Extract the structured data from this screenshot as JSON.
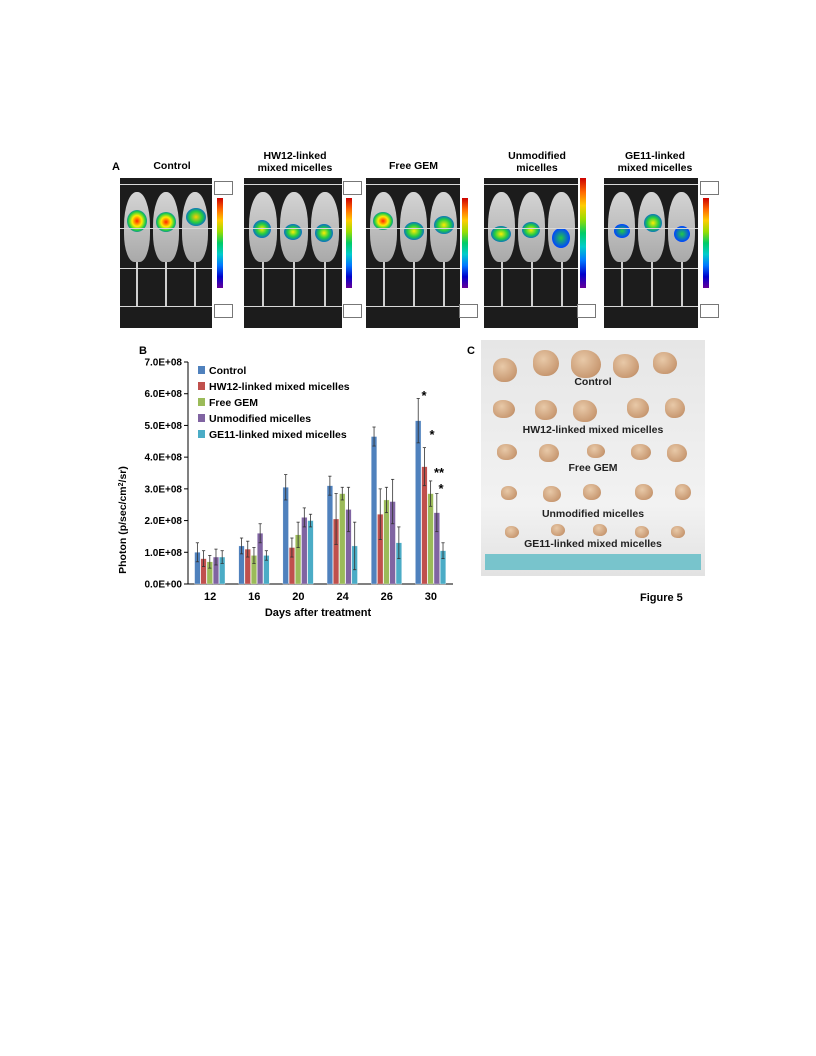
{
  "panel_a": {
    "letter": "A",
    "groups": [
      {
        "title_line1": "Control",
        "title_line2": ""
      },
      {
        "title_line1": "HW12-linked",
        "title_line2": "mixed micelles"
      },
      {
        "title_line1": "Free GEM",
        "title_line2": ""
      },
      {
        "title_line1": "Unmodified",
        "title_line2": "micelles"
      },
      {
        "title_line1": "GE11-linked",
        "title_line2": "mixed micelles"
      }
    ]
  },
  "panel_b": {
    "letter": "B",
    "legend": [
      "Control",
      "HW12-linked mixed micelles",
      "Free GEM",
      "Unmodified micelles",
      "GE11-linked mixed micelles"
    ],
    "ylabel_main": "Photon (p/sec/cm",
    "ylabel_sup": "2",
    "ylabel_tail": "/sr)",
    "xlabel": "Days after treatment",
    "ytick_labels": [
      "0.0E+00",
      "1.0E+08",
      "2.0E+08",
      "3.0E+08",
      "4.0E+08",
      "5.0E+08",
      "6.0E+08",
      "7.0E+08"
    ],
    "significance": [
      "*",
      "*",
      "**",
      "*"
    ]
  },
  "panel_c": {
    "letter": "C",
    "rows": [
      "Control",
      "HW12-linked mixed micelles",
      "Free GEM",
      "Unmodified micelles",
      "GE11-linked mixed micelles"
    ]
  },
  "figure_caption": "Figure  5",
  "chart_data": {
    "type": "bar",
    "categories": [
      "12",
      "16",
      "20",
      "24",
      "26",
      "30"
    ],
    "xlabel": "Days after treatment",
    "ylabel": "Photon (p/sec/cm2/sr)",
    "ylim": [
      0,
      700000000
    ],
    "grid": false,
    "legend_position": "top-left",
    "series": [
      {
        "name": "Control",
        "color": "#4f81bd",
        "values": [
          100000000,
          120000000,
          305000000,
          310000000,
          465000000,
          515000000
        ],
        "errors": [
          30000000,
          25000000,
          40000000,
          30000000,
          30000000,
          70000000
        ]
      },
      {
        "name": "HW12-linked mixed micelles",
        "color": "#c0504d",
        "values": [
          80000000,
          110000000,
          115000000,
          205000000,
          220000000,
          370000000
        ],
        "errors": [
          25000000,
          25000000,
          30000000,
          80000000,
          80000000,
          60000000
        ]
      },
      {
        "name": "Free GEM",
        "color": "#9bbb59",
        "values": [
          70000000,
          90000000,
          155000000,
          285000000,
          265000000,
          285000000
        ],
        "errors": [
          20000000,
          25000000,
          40000000,
          20000000,
          40000000,
          40000000
        ]
      },
      {
        "name": "Unmodified micelles",
        "color": "#8064a2",
        "values": [
          85000000,
          160000000,
          210000000,
          235000000,
          260000000,
          225000000
        ],
        "errors": [
          25000000,
          30000000,
          30000000,
          70000000,
          70000000,
          60000000
        ]
      },
      {
        "name": "GE11-linked mixed micelles",
        "color": "#4bacc6",
        "values": [
          85000000,
          90000000,
          200000000,
          120000000,
          130000000,
          105000000
        ],
        "errors": [
          20000000,
          15000000,
          20000000,
          75000000,
          50000000,
          25000000
        ]
      }
    ]
  }
}
